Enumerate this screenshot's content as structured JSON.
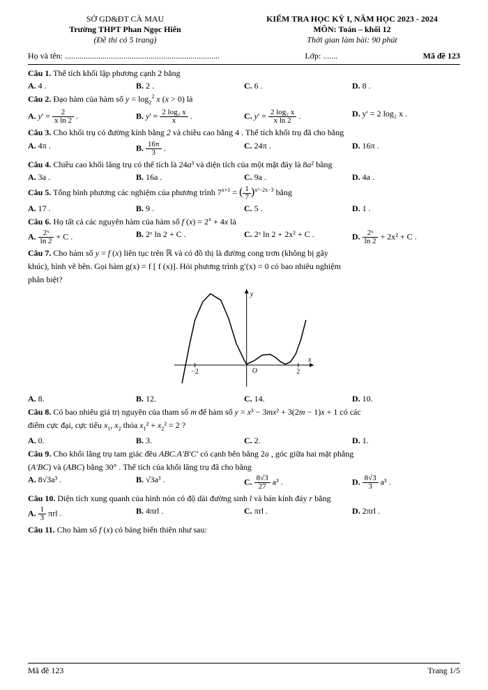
{
  "header": {
    "so": "SỞ GD&ĐT CÀ MAU",
    "truong": "Trường THPT Phan Ngọc Hiển",
    "dethi": "(Đề thi có 5 trang)",
    "kiemtra": "KIỂM TRA HỌC KỲ I, NĂM HỌC 2023 - 2024",
    "mon": "MÔN: Toán – khối 12",
    "thoigian": "Thời gian làm bài: 90 phút"
  },
  "name_row": {
    "ho": "Họ và tên: ..........................................................................",
    "lop": "Lớp: .......",
    "made": "Mã đề 123"
  },
  "q1": {
    "text": "Câu 1. Thể tích khối lập phương cạnh  2  bằng",
    "a": "4 .",
    "b": "2 .",
    "c": "6 .",
    "d": "8 ."
  },
  "q2": {
    "text": "Câu 2. Đạo hàm của hàm số  y = log₂² x  (x > 0) là",
    "a_num": "2",
    "a_den": "x ln 2",
    "b_num": "2 log₂ x",
    "b_den": "x",
    "c_num": "2 log₂ x",
    "c_den": "x ln 2",
    "d": "y' = 2 log₂ x ."
  },
  "q3": {
    "text": "Câu 3. Cho khối trụ có đường kính bằng 2 và chiều cao bằng 4 . Thể tích khối trụ đã cho bằng",
    "a": "4π .",
    "b_num": "16π",
    "b_den": "3",
    "c": "24π .",
    "d": "16π ."
  },
  "q4": {
    "text": "Câu 4. Chiều cao khối lăng trụ có thể tích là  24a³  và diện tích của một mặt đáy là  8a² bằng",
    "a": "3a .",
    "b": "16a .",
    "c": "9a .",
    "d": "4a ."
  },
  "q5": {
    "pre": "Câu 5. Tổng  bình phương các nghiệm của phương trình  7",
    "exp1": "x+1",
    "eq": " = ",
    "frac_num": "1",
    "frac_den": "7",
    "exp2": "x²−2x−3",
    "post": "  bằng",
    "a": "17 .",
    "b": "9 .",
    "c": "5 .",
    "d": "1 ."
  },
  "q6": {
    "text": "Câu 6. Họ tất cả các nguyên hàm của hàm số  f (x) = 2ˣ + 4x  là",
    "a_num": "2ˣ",
    "a_den": "ln 2",
    "a_post": " + C .",
    "b": "2ˣ ln 2 + C .",
    "c": "2ˣ ln 2 + 2x² + C .",
    "d_num": "2ˣ",
    "d_den": "ln 2",
    "d_post": " + 2x² + C ."
  },
  "q7": {
    "line1": "Câu 7. Cho hàm số  y = f (x)  liên tục trên  ℝ  và có đồ thị là đường cong trơn (không bị gãy",
    "line2": "khúc), hình vẽ bên. Gọi hàm  g(x) = f [ f (x)].  Hỏi phương trình  g′(x) = 0  có bao nhiêu nghiệm",
    "line3": "phân biệt?",
    "a": "8.",
    "b": "12.",
    "c": "14.",
    "d": "10."
  },
  "q8": {
    "line1": "Câu 8. Có bao nhiêu giá trị nguyên của tham số  m  để hàm số  y = x³ − 3mx² + 3(2m − 1)x + 1 có các",
    "line2": "điểm cực đại, cực tiểu  x₁, x₂  thỏa  x₁² + x₂² = 2 ?",
    "a": "0.",
    "b": "3.",
    "c": "2.",
    "d": "1."
  },
  "q9": {
    "line1": "Câu 9. Cho khối lăng trụ tam giác đều  ABC.A′B′C′  có cạnh bên bằng  2a , góc giữa hai mặt phẳng",
    "line2": "(A′BC)  và  (ABC)  bằng  30° . Thể tích của khối lăng trụ đã cho bằng",
    "a": "8√3a³ .",
    "b": "√3a³ .",
    "c_num": "8√3",
    "c_den": "27",
    "c_post": " a³ .",
    "d_num": "8√3",
    "d_den": "3",
    "d_post": " a³ ."
  },
  "q10": {
    "text": "Câu 10. Diện tích xung quanh của hình nón có độ dài đường sinh  l  và bán kính đáy  r  bằng",
    "a_num": "1",
    "a_den": "3",
    "a_post": " πrl .",
    "b": "4πrl .",
    "c": "πrl .",
    "d": "2πrl ."
  },
  "q11": {
    "text": "Câu 11. Cho hàm số  f (x)  có bảng biến thiên như sau:"
  },
  "footer": {
    "left": "Mã đề 123",
    "right": "Trang 1/5"
  },
  "graph": {
    "xlim": [
      -2.8,
      2.6
    ],
    "ylim": [
      -1.2,
      4.2
    ],
    "xtick_pos": [
      -2,
      2
    ],
    "xtick_labels": [
      "−2",
      "2"
    ],
    "origin_label": "O",
    "axis_labels": {
      "x": "x",
      "y": "y"
    },
    "axis_color": "#000000",
    "curve_color": "#000000",
    "curve_width": 1.5,
    "curve_points": [
      [
        -2.5,
        -1.0
      ],
      [
        -2.2,
        1.2
      ],
      [
        -2.0,
        2.5
      ],
      [
        -1.7,
        3.5
      ],
      [
        -1.4,
        3.95
      ],
      [
        -1.0,
        3.6
      ],
      [
        -0.7,
        2.6
      ],
      [
        -0.4,
        1.2
      ],
      [
        -0.1,
        0.3
      ],
      [
        0.0,
        0.05
      ],
      [
        0.3,
        0.25
      ],
      [
        0.6,
        0.55
      ],
      [
        0.9,
        0.6
      ],
      [
        1.1,
        0.45
      ],
      [
        1.3,
        0.2
      ],
      [
        1.5,
        0.05
      ],
      [
        1.7,
        0.18
      ],
      [
        1.9,
        0.6
      ],
      [
        2.1,
        1.4
      ],
      [
        2.3,
        2.5
      ]
    ]
  }
}
